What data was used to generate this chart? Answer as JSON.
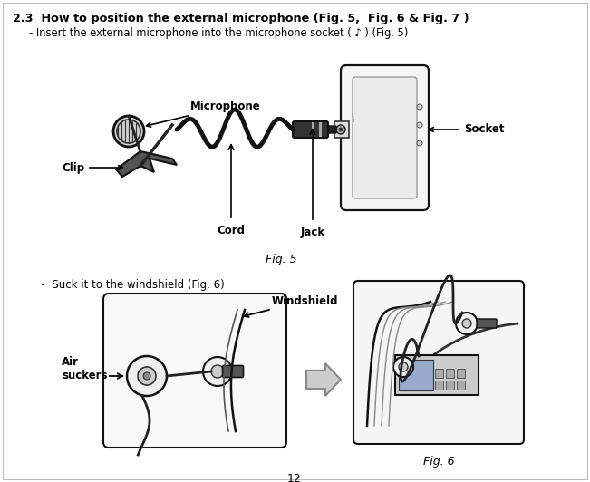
{
  "bg_color": "#ffffff",
  "title_bold": "2.3  How to position the external microphone (Fig. 5,  Fig. 6 & Fig. 7 )",
  "subtitle": "     - Insert the external microphone into the microphone socket (  ) (Fig. 5)",
  "fig5_caption": "Fig. 5",
  "fig6_caption": "Fig. 6",
  "suck_text": "  -  Suck it to the windshield (Fig. 6)",
  "page_number": "12",
  "label_microphone": "Microphone",
  "label_clip": "Clip",
  "label_cord": "Cord",
  "label_jack": "Jack",
  "label_socket": "Socket",
  "label_windshield": "Windshield",
  "label_airsuckers": "Air\nsuckers"
}
